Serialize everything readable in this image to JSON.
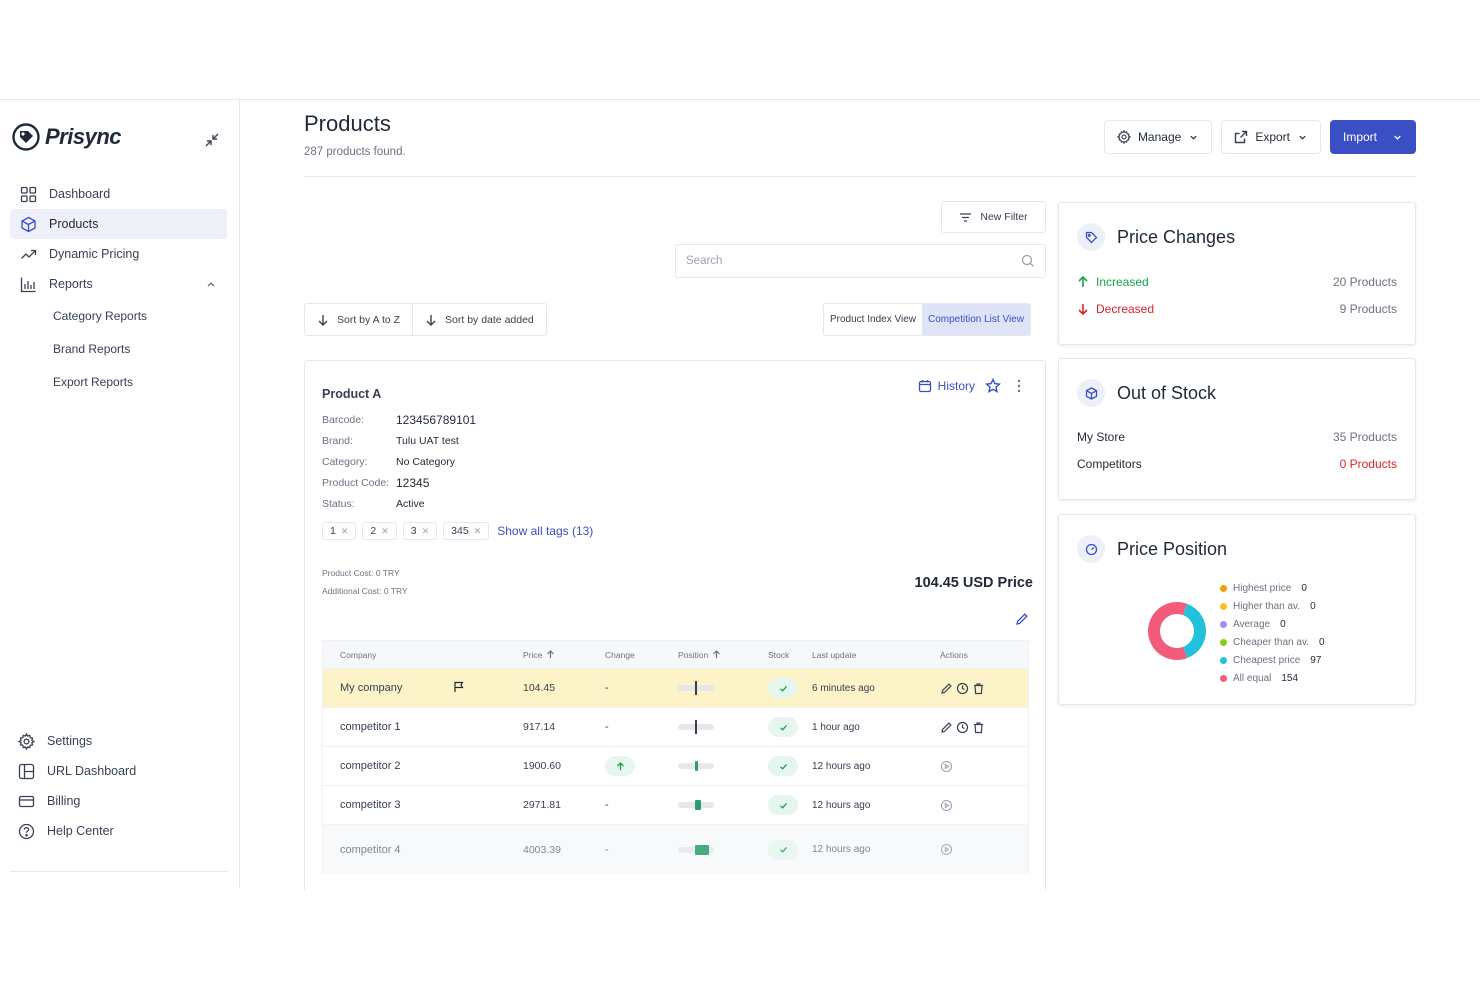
{
  "brand": {
    "name": "Prisync"
  },
  "sidebar": {
    "items": [
      {
        "label": "Dashboard",
        "icon": "grid-icon"
      },
      {
        "label": "Products",
        "icon": "box-icon",
        "active": true
      },
      {
        "label": "Dynamic Pricing",
        "icon": "trend-icon"
      },
      {
        "label": "Reports",
        "icon": "bar-chart-icon",
        "expanded": true
      }
    ],
    "report_sub_items": [
      "Category Reports",
      "Brand Reports",
      "Export Reports"
    ],
    "bottom_items": [
      {
        "label": "Settings",
        "icon": "gear-icon"
      },
      {
        "label": "URL Dashboard",
        "icon": "layout-icon"
      },
      {
        "label": "Billing",
        "icon": "card-icon"
      },
      {
        "label": "Help Center",
        "icon": "help-icon"
      }
    ]
  },
  "header": {
    "title": "Products",
    "subtitle": "287 products found.",
    "manage_label": "Manage",
    "export_label": "Export",
    "import_label": "Import"
  },
  "toolbar": {
    "new_filter_label": "New Filter",
    "search_placeholder": "Search",
    "sort_az_label": "Sort by A to Z",
    "sort_date_label": "Sort by date added",
    "view_index_label": "Product Index View",
    "view_competition_label": "Competition List View"
  },
  "product": {
    "name": "Product A",
    "history_label": "History",
    "details": [
      {
        "label": "Barcode:",
        "value": "123456789101",
        "big": true
      },
      {
        "label": "Brand:",
        "value": "Tulu UAT test"
      },
      {
        "label": "Category:",
        "value": "No Category"
      },
      {
        "label": "Product Code:",
        "value": "12345",
        "big": true
      },
      {
        "label": "Status:",
        "value": "Active"
      }
    ],
    "tags": [
      "1",
      "2",
      "3",
      "345"
    ],
    "show_tags_label": "Show all tags (13)",
    "product_cost": "Product Cost: 0 TRY",
    "additional_cost": "Additional Cost: 0 TRY",
    "price_label": "104.45 USD Price"
  },
  "table": {
    "headers": {
      "company": "Company",
      "price": "Price",
      "change": "Change",
      "position": "Position",
      "stock": "Stock",
      "last_update": "Last update",
      "actions": "Actions"
    },
    "rows": [
      {
        "company": "My company",
        "price": "104.45",
        "change": "-",
        "position": 0.5,
        "in_stock": true,
        "last_update": "6 minutes ago",
        "mine": true
      },
      {
        "company": "competitor 1",
        "price": "917.14",
        "change": "-",
        "position": 0.5,
        "in_stock": true,
        "last_update": "1 hour ago"
      },
      {
        "company": "competitor 2",
        "price": "1900.60",
        "change": "up",
        "position": 0.55,
        "in_stock": true,
        "last_update": "12 hours ago"
      },
      {
        "company": "competitor 3",
        "price": "2971.81",
        "change": "-",
        "position": 0.65,
        "in_stock": true,
        "last_update": "12 hours ago"
      },
      {
        "company": "competitor 4",
        "price": "4003.39",
        "change": "-",
        "position": 0.85,
        "in_stock": true,
        "last_update": "12 hours ago",
        "dim": true
      }
    ]
  },
  "price_changes": {
    "title": "Price Changes",
    "increased_label": "Increased",
    "increased_value": "20 Products",
    "decreased_label": "Decreased",
    "decreased_value": "9 Products"
  },
  "out_of_stock": {
    "title": "Out of Stock",
    "my_store_label": "My Store",
    "my_store_value": "35 Products",
    "competitors_label": "Competitors",
    "competitors_value": "0 Products"
  },
  "price_position": {
    "title": "Price Position",
    "legend": [
      {
        "label": "Highest price",
        "value": "0",
        "color": "#f59e0b"
      },
      {
        "label": "Higher than av.",
        "value": "0",
        "color": "#fbbf24"
      },
      {
        "label": "Average",
        "value": "0",
        "color": "#a78bfa"
      },
      {
        "label": "Cheaper than av.",
        "value": "0",
        "color": "#84cc16"
      },
      {
        "label": "Cheapest price",
        "value": "97",
        "color": "#22c1dc"
      },
      {
        "label": "All equal",
        "value": "154",
        "color": "#f25c7a"
      }
    ]
  },
  "colors": {
    "accent": "#3b4fc4",
    "mine_row": "#fdf3c8",
    "green": "#16a34a",
    "red": "#dc2626"
  }
}
